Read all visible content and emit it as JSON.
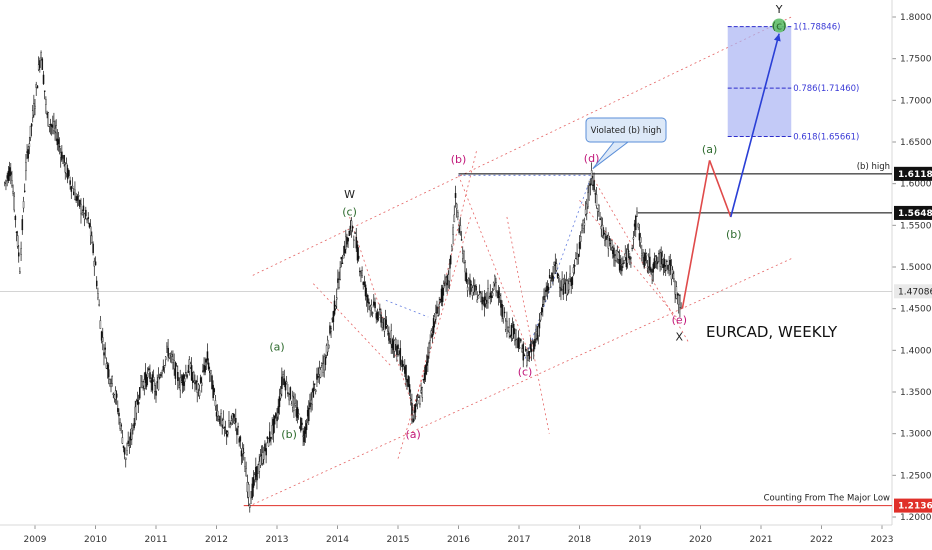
{
  "chart_data": {
    "type": "line",
    "symbol": "EURCAD, WEEKLY",
    "x_axis": {
      "type": "date",
      "range": [
        2008.5,
        2023.5
      ],
      "ticks": [
        "2009",
        "2010",
        "2011",
        "2012",
        "2013",
        "2014",
        "2015",
        "2016",
        "2017",
        "2018",
        "2019",
        "2020",
        "2021",
        "2022",
        "2023"
      ]
    },
    "y_axis": {
      "position": "right",
      "range": [
        1.195,
        1.81
      ],
      "ticks": [
        "1.80000",
        "1.75000",
        "1.70000",
        "1.65000",
        "1.60000",
        "1.55000",
        "1.50000",
        "1.45000",
        "1.40000",
        "1.35000",
        "1.30000",
        "1.25000",
        "1.20000"
      ]
    },
    "series": [
      {
        "values": [
          [
            2008.5,
            1.6
          ],
          [
            2008.6,
            1.62
          ],
          [
            2008.75,
            1.5
          ],
          [
            2008.85,
            1.62
          ],
          [
            2009.0,
            1.7
          ],
          [
            2009.1,
            1.76
          ],
          [
            2009.2,
            1.68
          ],
          [
            2009.35,
            1.66
          ],
          [
            2009.5,
            1.62
          ],
          [
            2009.7,
            1.58
          ],
          [
            2009.9,
            1.55
          ],
          [
            2010.0,
            1.5
          ],
          [
            2010.1,
            1.42
          ],
          [
            2010.2,
            1.38
          ],
          [
            2010.35,
            1.34
          ],
          [
            2010.5,
            1.27
          ],
          [
            2010.6,
            1.3
          ],
          [
            2010.75,
            1.36
          ],
          [
            2010.9,
            1.37
          ],
          [
            2011.0,
            1.35
          ],
          [
            2011.1,
            1.38
          ],
          [
            2011.2,
            1.4
          ],
          [
            2011.4,
            1.36
          ],
          [
            2011.55,
            1.38
          ],
          [
            2011.7,
            1.35
          ],
          [
            2011.85,
            1.39
          ],
          [
            2012.0,
            1.33
          ],
          [
            2012.15,
            1.3
          ],
          [
            2012.3,
            1.32
          ],
          [
            2012.45,
            1.27
          ],
          [
            2012.55,
            1.22
          ],
          [
            2012.65,
            1.25
          ],
          [
            2012.8,
            1.28
          ],
          [
            2013.0,
            1.32
          ],
          [
            2013.1,
            1.37
          ],
          [
            2013.3,
            1.33
          ],
          [
            2013.45,
            1.3
          ],
          [
            2013.6,
            1.35
          ],
          [
            2013.8,
            1.39
          ],
          [
            2013.95,
            1.45
          ],
          [
            2014.1,
            1.52
          ],
          [
            2014.25,
            1.55
          ],
          [
            2014.35,
            1.51
          ],
          [
            2014.5,
            1.46
          ],
          [
            2014.7,
            1.44
          ],
          [
            2014.85,
            1.42
          ],
          [
            2015.0,
            1.4
          ],
          [
            2015.15,
            1.37
          ],
          [
            2015.25,
            1.32
          ],
          [
            2015.4,
            1.35
          ],
          [
            2015.55,
            1.42
          ],
          [
            2015.7,
            1.46
          ],
          [
            2015.85,
            1.49
          ],
          [
            2015.95,
            1.58
          ],
          [
            2016.05,
            1.53
          ],
          [
            2016.15,
            1.48
          ],
          [
            2016.25,
            1.47
          ],
          [
            2016.45,
            1.46
          ],
          [
            2016.6,
            1.48
          ],
          [
            2016.8,
            1.43
          ],
          [
            2016.95,
            1.42
          ],
          [
            2017.05,
            1.4
          ],
          [
            2017.15,
            1.39
          ],
          [
            2017.3,
            1.42
          ],
          [
            2017.45,
            1.47
          ],
          [
            2017.6,
            1.5
          ],
          [
            2017.75,
            1.47
          ],
          [
            2017.9,
            1.49
          ],
          [
            2018.0,
            1.53
          ],
          [
            2018.1,
            1.56
          ],
          [
            2018.2,
            1.61
          ],
          [
            2018.3,
            1.57
          ],
          [
            2018.4,
            1.54
          ],
          [
            2018.55,
            1.52
          ],
          [
            2018.7,
            1.5
          ],
          [
            2018.85,
            1.52
          ],
          [
            2018.95,
            1.56
          ],
          [
            2019.05,
            1.51
          ],
          [
            2019.2,
            1.5
          ],
          [
            2019.35,
            1.51
          ],
          [
            2019.5,
            1.5
          ],
          [
            2019.6,
            1.47
          ],
          [
            2019.7,
            1.45
          ]
        ]
      }
    ],
    "horizontal_levels": [
      {
        "value": 1.6118,
        "label": "1.61180",
        "note": "(b) high"
      },
      {
        "value": 1.56489,
        "label": "1.56489",
        "note": ""
      },
      {
        "value": 1.47086,
        "label": "1.47086",
        "note": ""
      },
      {
        "value": 1.21369,
        "label": "1.21369",
        "note": "Counting From The Major Low"
      }
    ],
    "fib_levels": [
      {
        "label": "1(1.78846)",
        "value": 1.78846
      },
      {
        "label": "0.786(1.71460)",
        "value": 1.7146
      },
      {
        "label": "0.618(1.65661)",
        "value": 1.65661
      }
    ],
    "wave_labels": [
      {
        "text": "W",
        "x": 2014.2,
        "y": 1.583,
        "color": "#222222"
      },
      {
        "text": "(c)",
        "x": 2014.2,
        "y": 1.562,
        "color": "#2e6b2e"
      },
      {
        "text": "(a)",
        "x": 2013.0,
        "y": 1.4,
        "color": "#2e6b2e"
      },
      {
        "text": "(b)",
        "x": 2013.2,
        "y": 1.295,
        "color": "#2e6b2e"
      },
      {
        "text": "(a)",
        "x": 2015.25,
        "y": 1.295,
        "color": "#c2187a"
      },
      {
        "text": "(b)",
        "x": 2016.0,
        "y": 1.625,
        "color": "#c2187a"
      },
      {
        "text": "(c)",
        "x": 2017.1,
        "y": 1.37,
        "color": "#c2187a"
      },
      {
        "text": "(d)",
        "x": 2018.2,
        "y": 1.626,
        "color": "#c2187a"
      },
      {
        "text": "(e)",
        "x": 2019.65,
        "y": 1.432,
        "color": "#c2187a"
      },
      {
        "text": "X",
        "x": 2019.65,
        "y": 1.412,
        "color": "#222222"
      },
      {
        "text": "(a)",
        "x": 2020.15,
        "y": 1.637,
        "color": "#2e6b2e"
      },
      {
        "text": "(b)",
        "x": 2020.55,
        "y": 1.535,
        "color": "#2e6b2e"
      },
      {
        "text": "(c)",
        "x": 2021.3,
        "y": 1.785,
        "color": "#2e6b2e"
      },
      {
        "text": "Y",
        "x": 2021.3,
        "y": 1.805,
        "color": "#222222"
      }
    ],
    "projection": [
      [
        2019.7,
        1.45
      ],
      [
        2020.15,
        1.628
      ],
      [
        2020.5,
        1.56
      ],
      [
        2021.3,
        1.78
      ]
    ],
    "callout": "Violated (b) high",
    "title": "EURCAD, WEEKLY"
  }
}
